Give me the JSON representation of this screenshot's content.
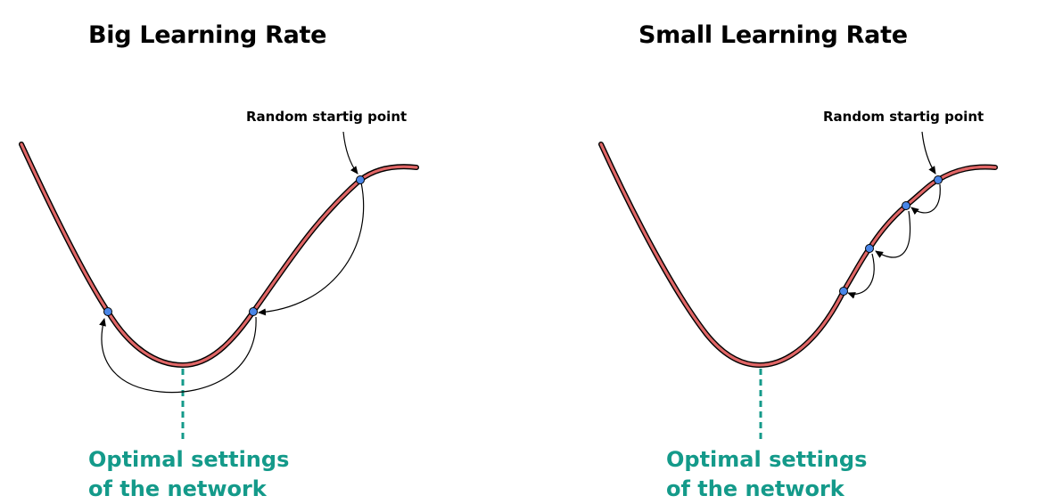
{
  "panels": [
    {
      "title": "Big Learning Rate",
      "start_label": "Random startig point",
      "optimal_line1": "Optimal settings",
      "optimal_line2": "of the network",
      "steps": 2
    },
    {
      "title": "Small Learning Rate",
      "start_label": "Random startig point",
      "optimal_line1": "Optimal settings",
      "optimal_line2": "of the network",
      "steps": 3
    }
  ],
  "colors": {
    "curve_fill": "#e06666",
    "curve_outline": "#000000",
    "point_fill": "#4a86e8",
    "optimum_line": "#149a8a",
    "arrow": "#000000"
  },
  "icons": [
    "curve",
    "gradient-step-arrow",
    "point-marker"
  ]
}
